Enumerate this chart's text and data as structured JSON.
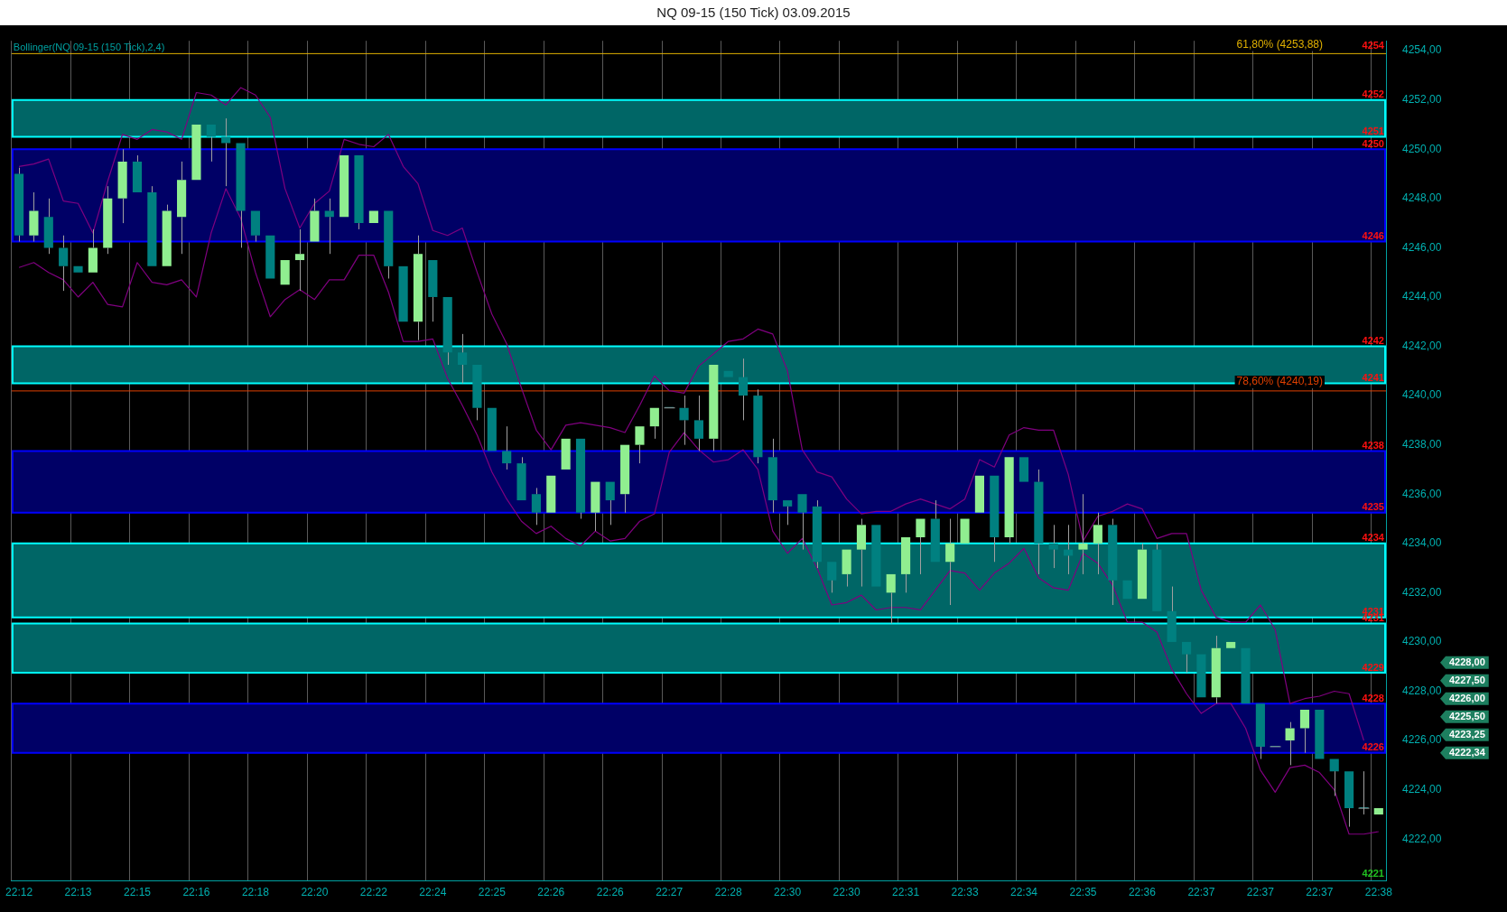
{
  "chart_data": {
    "type": "candlestick",
    "title": "NQ 09-15 (150 Tick)  03.09.2015",
    "subtitle": "Bollinger(NQ 09-15 (150 Tick),2,4)",
    "categories": [
      "22:12",
      null,
      null,
      null,
      "22:13",
      null,
      null,
      null,
      "22:15",
      null,
      null,
      null,
      "22:16",
      null,
      null,
      null,
      "22:18",
      null,
      null,
      null,
      "22:20",
      null,
      null,
      null,
      "22:22",
      null,
      null,
      null,
      "22:24",
      null,
      null,
      null,
      "22:25",
      null,
      null,
      null,
      "22:26",
      null,
      null,
      null,
      "22:26",
      null,
      null,
      null,
      "22:27",
      null,
      null,
      null,
      "22:28",
      null,
      null,
      null,
      "22:30",
      null,
      null,
      null,
      "22:30",
      null,
      null,
      null,
      "22:31",
      null,
      null,
      null,
      "22:33",
      null,
      null,
      null,
      "22:34",
      null,
      null,
      null,
      "22:35",
      null,
      null,
      null,
      "22:36",
      null,
      null,
      null,
      "22:37",
      null,
      null,
      null,
      "22:37",
      null,
      null,
      null,
      "22:37",
      null,
      null,
      null,
      "22:38"
    ],
    "ohlc": [
      [
        4249,
        4249.25,
        4246.25,
        4246.5
      ],
      [
        4246.5,
        4248.25,
        4246.25,
        4247.5
      ],
      [
        4247.25,
        4248,
        4245.75,
        4246
      ],
      [
        4246,
        4246.5,
        4244.25,
        4245.25
      ],
      [
        4245.25,
        4245.25,
        4245,
        4245
      ],
      [
        4245,
        4246.75,
        4245,
        4246
      ],
      [
        4246,
        4248.5,
        4245.75,
        4248
      ],
      [
        4248,
        4250,
        4247,
        4249.5
      ],
      [
        4249.5,
        4249.75,
        4248.25,
        4248.25
      ],
      [
        4248.25,
        4248.5,
        4245.25,
        4245.25
      ],
      [
        4245.25,
        4247.75,
        4245.25,
        4247.5
      ],
      [
        4247.25,
        4249.5,
        4245.75,
        4248.75
      ],
      [
        4248.75,
        4251,
        4248.75,
        4251
      ],
      [
        4251,
        4251,
        4249.5,
        4250.5
      ],
      [
        4250.5,
        4251.25,
        4248.5,
        4250.25
      ],
      [
        4250.25,
        4250.25,
        4246,
        4247.5
      ],
      [
        4247.5,
        4247.5,
        4246.25,
        4246.5
      ],
      [
        4246.5,
        4246.5,
        4244.75,
        4244.75
      ],
      [
        4244.5,
        4245.5,
        4244.5,
        4245.5
      ],
      [
        4245.5,
        4246.75,
        4244.25,
        4245.75
      ],
      [
        4246.25,
        4248,
        4246.25,
        4247.5
      ],
      [
        4247.5,
        4248,
        4245.75,
        4247.25
      ],
      [
        4247.25,
        4249.75,
        4247.25,
        4249.75
      ],
      [
        4249.75,
        4249.75,
        4246.75,
        4247
      ],
      [
        4247,
        4247.5,
        4247,
        4247.5
      ],
      [
        4247.5,
        4247.5,
        4244.75,
        4245.25
      ],
      [
        4245.25,
        4245.25,
        4243,
        4243
      ],
      [
        4243,
        4246.5,
        4242.25,
        4245.75
      ],
      [
        4245.5,
        4245.5,
        4243,
        4244
      ],
      [
        4244,
        4244,
        4241.25,
        4241.75
      ],
      [
        4241.75,
        4242.5,
        4240.5,
        4241.25
      ],
      [
        4241.25,
        4241.25,
        4239,
        4239.5
      ],
      [
        4239.5,
        4239.5,
        4237.75,
        4237.75
      ],
      [
        4237.75,
        4238.75,
        4237,
        4237.25
      ],
      [
        4237.25,
        4237.5,
        4235.75,
        4235.75
      ],
      [
        4236,
        4236.25,
        4234.75,
        4235.25
      ],
      [
        4235.25,
        4236.75,
        4235.25,
        4236.75
      ],
      [
        4237,
        4238.25,
        4237,
        4238.25
      ],
      [
        4238.25,
        4238.25,
        4235,
        4235.25
      ],
      [
        4235.25,
        4236.5,
        4234.5,
        4236.5
      ],
      [
        4236.5,
        4236.5,
        4234.75,
        4235.75
      ],
      [
        4236,
        4238,
        4235.25,
        4238
      ],
      [
        4238,
        4238.75,
        4237.25,
        4238.75
      ],
      [
        4238.75,
        4239.5,
        4238.25,
        4239.5
      ],
      [
        4239.5,
        4239.5,
        4239.5,
        4239.5
      ],
      [
        4239.5,
        4240,
        4238,
        4239
      ],
      [
        4239,
        4240,
        4237.75,
        4238.25
      ],
      [
        4238.25,
        4241.25,
        4237.75,
        4241.25
      ],
      [
        4241,
        4241,
        4240.75,
        4240.75
      ],
      [
        4240.75,
        4241.5,
        4239,
        4240
      ],
      [
        4240,
        4240.25,
        4237.25,
        4237.5
      ],
      [
        4237.5,
        4238.25,
        4235.25,
        4235.75
      ],
      [
        4235.75,
        4235.75,
        4234.75,
        4235.5
      ],
      [
        4236,
        4236,
        4233.75,
        4235.25
      ],
      [
        4235.5,
        4235.75,
        4233,
        4233.25
      ],
      [
        4233.25,
        4233.25,
        4232,
        4232.5
      ],
      [
        4232.75,
        4233.75,
        4232.25,
        4233.75
      ],
      [
        4233.75,
        4235,
        4232.25,
        4234.75
      ],
      [
        4234.75,
        4234.75,
        4232.25,
        4232.25
      ],
      [
        4232,
        4232.75,
        4230.75,
        4232.75
      ],
      [
        4232.75,
        4234.25,
        4232,
        4234.25
      ],
      [
        4234.25,
        4235,
        4232.75,
        4235
      ],
      [
        4235,
        4235.75,
        4233.25,
        4233.25
      ],
      [
        4233.25,
        4235,
        4231.5,
        4234
      ],
      [
        4234,
        4235,
        4234,
        4235
      ],
      [
        4235.25,
        4236.75,
        4235.25,
        4236.75
      ],
      [
        4236.75,
        4236.75,
        4233.25,
        4234.25
      ],
      [
        4234.25,
        4237.5,
        4234,
        4237.5
      ],
      [
        4237.5,
        4237.5,
        4236.5,
        4236.5
      ],
      [
        4236.5,
        4237,
        4232.75,
        4234
      ],
      [
        4234,
        4234.75,
        4233,
        4233.75
      ],
      [
        4233.75,
        4234.75,
        4232.75,
        4233.5
      ],
      [
        4233.75,
        4236,
        4232.75,
        4234
      ],
      [
        4234,
        4235.25,
        4232.75,
        4234.75
      ],
      [
        4234.75,
        4235,
        4231.5,
        4232.5
      ],
      [
        4232.5,
        4232.5,
        4231.75,
        4231.75
      ],
      [
        4231.75,
        4234,
        4231.75,
        4233.75
      ],
      [
        4233.75,
        4234,
        4231.25,
        4231.25
      ],
      [
        4231.25,
        4232.25,
        4230,
        4230
      ],
      [
        4230,
        4230,
        4228.75,
        4229.5
      ],
      [
        4229.5,
        4229.5,
        4227.75,
        4227.75
      ],
      [
        4227.75,
        4230.25,
        4227.5,
        4229.75
      ],
      [
        4229.75,
        4230,
        4229.75,
        4230
      ],
      [
        4229.75,
        4229.75,
        4227.5,
        4227.5
      ],
      [
        4227.5,
        4227.5,
        4225.25,
        4225.75
      ],
      [
        4225.75,
        4225.75,
        4225.75,
        4225.75
      ],
      [
        4226,
        4226.75,
        4225,
        4226.5
      ],
      [
        4226.5,
        4227.25,
        4225.5,
        4227.25
      ],
      [
        4227.25,
        4227.25,
        4225.25,
        4225.25
      ],
      [
        4225.25,
        4225.25,
        4223.75,
        4224.75
      ],
      [
        4224.75,
        4224.75,
        4222.5,
        4223.25
      ],
      [
        4223.25,
        4224.75,
        4223,
        4223.25
      ],
      [
        4223,
        4223.25,
        4223,
        4223.25
      ]
    ],
    "colors": [
      "#008080",
      "#90ee90",
      "#008080",
      "#008080",
      "#008080",
      "#90ee90",
      "#90ee90",
      "#90ee90",
      "#008080",
      "#008080",
      "#90ee90",
      "#90ee90",
      "#90ee90",
      "#008080",
      "#008080",
      "#008080",
      "#008080",
      "#008080",
      "#90ee90",
      "#90ee90",
      "#90ee90",
      "#008080",
      "#90ee90",
      "#008080",
      "#90ee90",
      "#008080",
      "#008080",
      "#90ee90",
      "#008080",
      "#008080",
      "#008080",
      "#008080",
      "#008080",
      "#008080",
      "#008080",
      "#008080",
      "#90ee90",
      "#90ee90",
      "#008080",
      "#90ee90",
      "#008080",
      "#90ee90",
      "#90ee90",
      "#90ee90",
      "#008080",
      "#008080",
      "#008080",
      "#90ee90",
      "#008080",
      "#008080",
      "#008080",
      "#008080",
      "#008080",
      "#008080",
      "#008080",
      "#008080",
      "#90ee90",
      "#90ee90",
      "#008080",
      "#90ee90",
      "#90ee90",
      "#90ee90",
      "#008080",
      "#90ee90",
      "#90ee90",
      "#90ee90",
      "#008080",
      "#90ee90",
      "#008080",
      "#008080",
      "#008080",
      "#008080",
      "#90ee90",
      "#90ee90",
      "#008080",
      "#008080",
      "#90ee90",
      "#008080",
      "#008080",
      "#008080",
      "#008080",
      "#90ee90",
      "#90ee90",
      "#008080",
      "#008080",
      "#008080",
      "#90ee90",
      "#90ee90",
      "#008080",
      "#008080",
      "#008080",
      "#008080",
      "#90ee90"
    ],
    "series": [
      {
        "type": "line",
        "color": "#800080",
        "values": [
          4249.3,
          4249.4,
          4249.6,
          4247.9,
          4247.8,
          4246.6,
          4248.7,
          4250.6,
          4250.4,
          4250.8,
          4250.7,
          4250.4,
          4252.3,
          4252.2,
          4251.8,
          4252.5,
          4252.2,
          4251.3,
          4248.4,
          4246.8,
          4247.8,
          4248.3,
          4250.4,
          4250.2,
          4250.1,
          4250.6,
          4249.3,
          4248.6,
          4246.7,
          4246.5,
          4246.8,
          4245.0,
          4243.3,
          4242.1,
          4240.3,
          4238.6,
          4237.8,
          4238.8,
          4238.9,
          4238.8,
          4238.7,
          4238.5,
          4239.6,
          4240.8,
          4240.2,
          4240.1,
          4241.2,
          4241.7,
          4242.2,
          4242.3,
          4242.7,
          4242.5,
          4241.0,
          4237.8,
          4236.9,
          4236.7,
          4235.8,
          4235.2,
          4235.3,
          4235.3,
          4235.6,
          4235.8,
          4235.6,
          4235.4,
          4235.8,
          4237.4,
          4237.1,
          4238.4,
          4238.7,
          4238.6,
          4238.6,
          4236.8,
          4234.1,
          4235.1,
          4235.3,
          4235.6,
          4235.4,
          4234.2,
          4234.4,
          4234.4,
          4232.1,
          4231.0,
          4230.8,
          4230.8,
          4231.5,
          4230.5,
          4227.5,
          4227.7,
          4227.8,
          4228.0,
          4227.9,
          4226.0,
          null
        ]
      },
      {
        "type": "line",
        "color": "#800080",
        "values": [
          4245.2,
          4245.4,
          4245.0,
          4244.7,
          4244.0,
          4244.6,
          4243.7,
          4243.6,
          4245.4,
          4244.6,
          4244.5,
          4244.7,
          4244.0,
          4246.6,
          4248.4,
          4247.2,
          4245.0,
          4243.2,
          4243.9,
          4244.3,
          4243.9,
          4244.7,
          4244.7,
          4245.7,
          4245.7,
          4244.2,
          4242.2,
          4242.2,
          4242.3,
          4240.7,
          4239.6,
          4238.4,
          4236.9,
          4235.8,
          4234.9,
          4234.4,
          4234.7,
          4234.2,
          4233.9,
          4234.5,
          4234.1,
          4234.2,
          4234.9,
          4235.2,
          4237.7,
          4238.5,
          4237.8,
          4237.3,
          4237.4,
          4237.8,
          4237.0,
          4234.5,
          4233.6,
          4234.2,
          4233.0,
          4231.5,
          4231.6,
          4231.9,
          4231.3,
          4231.4,
          4231.4,
          4231.3,
          4232.1,
          4232.9,
          4232.8,
          4232.1,
          4232.8,
          4233.2,
          4233.8,
          4232.6,
          4232.2,
          4232.1,
          4233.6,
          4233.2,
          4232.3,
          4230.8,
          4230.8,
          4230.4,
          4228.9,
          4227.9,
          4227.1,
          4227.5,
          4227.5,
          4226.5,
          4224.8,
          4223.9,
          4224.9,
          4225.0,
          4224.7,
          4224.0,
          4222.2,
          4222.2,
          4222.3
        ]
      }
    ],
    "bands": [
      {
        "axis": "y",
        "from": 4250.5,
        "to": 4252,
        "color": "#006666"
      },
      {
        "axis": "y",
        "from": 4246.25,
        "to": 4250,
        "color": "#000066"
      },
      {
        "axis": "y",
        "from": 4240.5,
        "to": 4242,
        "color": "#006666"
      },
      {
        "axis": "y",
        "from": 4235.25,
        "to": 4237.75,
        "color": "#000066"
      },
      {
        "axis": "y",
        "from": 4231,
        "to": 4234,
        "color": "#006666"
      },
      {
        "axis": "y",
        "from": 4228.75,
        "to": 4230.75,
        "color": "#006666"
      },
      {
        "axis": "y",
        "from": 4225.5,
        "to": 4227.5,
        "color": "#000066"
      }
    ],
    "ref_lines": [
      {
        "axis": "y",
        "value": 4253.88,
        "label": "61,80% (4253,88)",
        "color": "#e0b000"
      },
      {
        "axis": "y",
        "value": 4240.19,
        "label": "78,60% (4240,19)",
        "color": "#e04000"
      }
    ],
    "annotations": [
      {
        "text": "4254",
        "x": "22:38",
        "y": 4254
      },
      {
        "text": "4252",
        "x": "22:38",
        "y": 4252
      },
      {
        "text": "4251",
        "x": "22:38",
        "y": 4250.5
      },
      {
        "text": "4250",
        "x": "22:38",
        "y": 4250
      },
      {
        "text": "4246",
        "x": "22:38",
        "y": 4246.25
      },
      {
        "text": "4242",
        "x": "22:38",
        "y": 4242
      },
      {
        "text": "4241",
        "x": "22:38",
        "y": 4240.5
      },
      {
        "text": "4238",
        "x": "22:38",
        "y": 4237.75
      },
      {
        "text": "4235",
        "x": "22:38",
        "y": 4235.25
      },
      {
        "text": "4234",
        "x": "22:38",
        "y": 4234
      },
      {
        "text": "4231",
        "x": "22:38",
        "y": 4231
      },
      {
        "text": "4231",
        "x": "22:38",
        "y": 4230.75
      },
      {
        "text": "4229",
        "x": "22:38",
        "y": 4228.75
      },
      {
        "text": "4228",
        "x": "22:38",
        "y": 4227.5
      },
      {
        "text": "4226",
        "x": "22:38",
        "y": 4225.5
      },
      "4221",
      "4228,00",
      "4227,50",
      "4226,00",
      "4225,50",
      "4223,25",
      "4222,34"
    ],
    "ylim": [
      4220.3,
      4254.4
    ],
    "yticks": [
      {
        "value": 4222,
        "label": "4222,00"
      },
      {
        "value": 4224,
        "label": "4224,00"
      },
      {
        "value": 4226,
        "label": "4226,00"
      },
      {
        "value": 4228,
        "label": "4228,00"
      },
      {
        "value": 4230,
        "label": "4230,00"
      },
      {
        "value": 4232,
        "label": "4232,00"
      },
      {
        "value": 4234,
        "label": "4234,00"
      },
      {
        "value": 4236,
        "label": "4236,00"
      },
      {
        "value": 4238,
        "label": "4238,00"
      },
      {
        "value": 4240,
        "label": "4240,00"
      },
      {
        "value": 4242,
        "label": "4242,00"
      },
      {
        "value": 4244,
        "label": "4244,00"
      },
      {
        "value": 4246,
        "label": "4246,00"
      },
      {
        "value": 4248,
        "label": "4248,00"
      },
      {
        "value": 4250,
        "label": "4250,00"
      },
      {
        "value": 4252,
        "label": "4252,00"
      },
      {
        "value": 4254,
        "label": "4254,00"
      }
    ],
    "grid": "x",
    "legend": false
  }
}
